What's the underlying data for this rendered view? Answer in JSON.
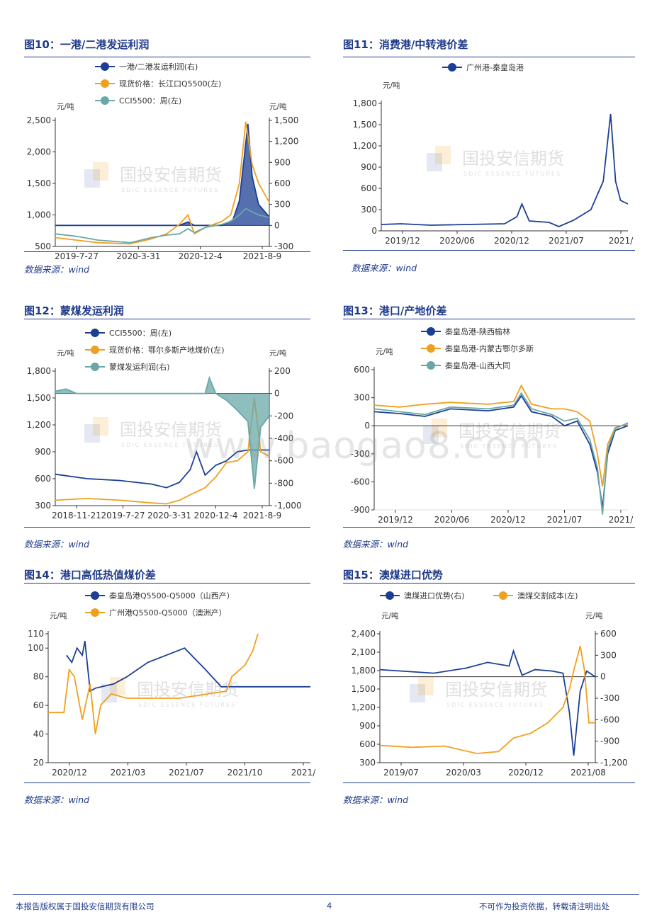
{
  "footer": {
    "left": "本报告版权属于国投安信期货有限公司",
    "page": "4",
    "right": "不可作为投资依据，转载请注明出处"
  },
  "watermark": {
    "brand": "国投安信期货",
    "brand_en": "SDIC ESSENCE FUTURES",
    "site": "www.baogao8.com"
  },
  "colors": {
    "navy": "#1c3f94",
    "orange": "#f0a020",
    "teal": "#6aa8a8",
    "title": "#1f3a8a"
  },
  "chart_data": [
    {
      "id": "fig10",
      "type": "line",
      "title": "图10：一港/二港发运利润",
      "source": "数据来源：wind",
      "unit_left": "元/吨",
      "unit_right": "元/吨",
      "x_ticks": [
        "2019-7-27",
        "2020-3-31",
        "2020-12-4",
        "2021-8-9"
      ],
      "y_left": {
        "ticks": [
          "2,500",
          "2,000",
          "1,500",
          "1,000",
          "500"
        ],
        "range": [
          500,
          2500
        ]
      },
      "y_right": {
        "ticks": [
          "1,500",
          "1,200",
          "900",
          "600",
          "300",
          "0",
          "-300"
        ],
        "range": [
          -300,
          1500
        ]
      },
      "series": [
        {
          "name": "一港/二港发运利润(右)",
          "axis": "right",
          "color": "#1c3f94",
          "style": "area",
          "x": [
            0,
            0.1,
            0.25,
            0.45,
            0.58,
            0.62,
            0.65,
            0.7,
            0.78,
            0.83,
            0.86,
            0.88,
            0.9,
            0.92,
            0.95,
            1.0
          ],
          "y": [
            0,
            0,
            0,
            0,
            0,
            50,
            0,
            0,
            0,
            80,
            350,
            900,
            1450,
            700,
            300,
            120
          ]
        },
        {
          "name": "现货价格：长江口Q5500(左)",
          "axis": "left",
          "color": "#f0a020",
          "style": "line",
          "x": [
            0,
            0.1,
            0.2,
            0.35,
            0.45,
            0.52,
            0.58,
            0.62,
            0.65,
            0.7,
            0.78,
            0.82,
            0.86,
            0.89,
            0.92,
            0.95,
            1.0
          ],
          "y": [
            640,
            600,
            560,
            540,
            620,
            700,
            850,
            1000,
            700,
            800,
            900,
            1000,
            1500,
            2480,
            1800,
            1500,
            1200
          ]
        },
        {
          "name": "CCI5500：周(左)",
          "axis": "left",
          "color": "#6aa8a8",
          "style": "line",
          "x": [
            0,
            0.1,
            0.2,
            0.35,
            0.45,
            0.52,
            0.58,
            0.62,
            0.65,
            0.7,
            0.78,
            0.82,
            0.86,
            0.89,
            0.92,
            0.95,
            1.0
          ],
          "y": [
            700,
            660,
            600,
            560,
            640,
            680,
            700,
            780,
            720,
            800,
            850,
            900,
            1000,
            1100,
            1050,
            1000,
            960
          ]
        }
      ]
    },
    {
      "id": "fig11",
      "type": "line",
      "title": "图11：消费港/中转港价差",
      "source": "数据来源：wind",
      "unit_left": "元/吨",
      "x_ticks": [
        "2019/12",
        "2020/06",
        "2020/12",
        "2021/07",
        "2021/"
      ],
      "y_left": {
        "ticks": [
          "1,800",
          "1,500",
          "1,200",
          "900",
          "600",
          "300",
          "0"
        ],
        "range": [
          0,
          1800
        ]
      },
      "series": [
        {
          "name": "广州港-秦皇岛港",
          "axis": "left",
          "color": "#1c3f94",
          "style": "line",
          "x": [
            0,
            0.08,
            0.2,
            0.35,
            0.5,
            0.55,
            0.57,
            0.6,
            0.68,
            0.72,
            0.78,
            0.85,
            0.9,
            0.93,
            0.95,
            0.97,
            1.0
          ],
          "y": [
            90,
            100,
            80,
            90,
            100,
            200,
            380,
            140,
            120,
            60,
            150,
            300,
            700,
            1650,
            700,
            430,
            380
          ]
        }
      ]
    },
    {
      "id": "fig12",
      "type": "line",
      "title": "图12：蒙煤发运利润",
      "source": "数据来源：wind",
      "unit_left": "元/吨",
      "unit_right": "元/吨",
      "x_ticks": [
        "2018-11-21",
        "2019-7-27",
        "2020-3-31",
        "2020-12-4",
        "2021-8-9"
      ],
      "y_left": {
        "ticks": [
          "1,800",
          "1,500",
          "1,200",
          "900",
          "600",
          "300"
        ],
        "range": [
          300,
          1800
        ]
      },
      "y_right": {
        "ticks": [
          "200",
          "0",
          "-200",
          "-400",
          "-600",
          "-800",
          "-1,000"
        ],
        "range": [
          -1000,
          200
        ]
      },
      "series": [
        {
          "name": "CCI5500：周(左)",
          "axis": "left",
          "color": "#1c3f94",
          "style": "line",
          "x": [
            0,
            0.15,
            0.3,
            0.45,
            0.52,
            0.58,
            0.63,
            0.66,
            0.7,
            0.75,
            0.8,
            0.85,
            0.9,
            0.95,
            1.0
          ],
          "y": [
            650,
            600,
            580,
            540,
            500,
            560,
            700,
            900,
            640,
            750,
            800,
            900,
            920,
            920,
            920
          ]
        },
        {
          "name": "现货价格：鄂尔多斯产地煤价(左)",
          "axis": "left",
          "color": "#f0a020",
          "style": "line",
          "x": [
            0,
            0.15,
            0.3,
            0.45,
            0.52,
            0.58,
            0.63,
            0.7,
            0.75,
            0.8,
            0.85,
            0.9,
            0.93,
            0.96,
            1.0
          ],
          "y": [
            360,
            380,
            360,
            330,
            320,
            360,
            420,
            500,
            620,
            780,
            800,
            900,
            1500,
            900,
            850
          ]
        },
        {
          "name": "蒙煤发运利润(右)",
          "axis": "right",
          "color": "#6aa8a8",
          "style": "area",
          "x": [
            0,
            0.05,
            0.1,
            0.3,
            0.6,
            0.7,
            0.72,
            0.75,
            0.8,
            0.85,
            0.9,
            0.93,
            0.96,
            1.0
          ],
          "y": [
            20,
            40,
            0,
            0,
            0,
            0,
            140,
            0,
            -60,
            -150,
            -250,
            -850,
            -300,
            -200
          ]
        }
      ]
    },
    {
      "id": "fig13",
      "type": "line",
      "title": "图13：港口/产地价差",
      "source": "数据来源：wind",
      "unit_left": "元/吨",
      "x_ticks": [
        "2019/12",
        "2020/06",
        "2020/12",
        "2021/07",
        "2021/"
      ],
      "y_left": {
        "ticks": [
          "600",
          "300",
          "0",
          "-300",
          "-600",
          "-900"
        ],
        "range": [
          -900,
          600
        ]
      },
      "series": [
        {
          "name": "秦皇岛港-陕西榆林",
          "axis": "left",
          "color": "#1c3f94",
          "style": "line",
          "x": [
            0,
            0.1,
            0.2,
            0.3,
            0.45,
            0.55,
            0.58,
            0.62,
            0.7,
            0.75,
            0.8,
            0.85,
            0.88,
            0.9,
            0.92,
            0.95,
            1.0
          ],
          "y": [
            150,
            130,
            100,
            180,
            160,
            200,
            320,
            150,
            100,
            0,
            50,
            -200,
            -500,
            -880,
            -300,
            -50,
            0
          ]
        },
        {
          "name": "秦皇岛港-内蒙古鄂尔多斯",
          "axis": "left",
          "color": "#f0a020",
          "style": "line",
          "x": [
            0,
            0.1,
            0.2,
            0.3,
            0.45,
            0.55,
            0.58,
            0.62,
            0.7,
            0.75,
            0.8,
            0.85,
            0.88,
            0.9,
            0.92,
            0.95,
            1.0
          ],
          "y": [
            220,
            200,
            230,
            250,
            230,
            260,
            430,
            230,
            180,
            180,
            150,
            50,
            -300,
            -650,
            -200,
            -20,
            20
          ]
        },
        {
          "name": "秦皇岛港-山西大同",
          "axis": "left",
          "color": "#6aa8a8",
          "style": "line",
          "x": [
            0,
            0.1,
            0.2,
            0.3,
            0.45,
            0.55,
            0.58,
            0.62,
            0.7,
            0.75,
            0.8,
            0.85,
            0.88,
            0.9,
            0.92,
            0.95,
            1.0
          ],
          "y": [
            180,
            150,
            120,
            200,
            180,
            220,
            350,
            180,
            120,
            50,
            80,
            -150,
            -450,
            -950,
            -250,
            -30,
            30
          ]
        }
      ]
    },
    {
      "id": "fig14",
      "type": "line",
      "title": "图14：港口高低热值煤价差",
      "source": "数据来源：wind",
      "unit_left": "元/吨",
      "x_ticks": [
        "2020/12",
        "2021/03",
        "2021/07",
        "2021/10",
        "2021/"
      ],
      "y_left": {
        "ticks": [
          "110",
          "100",
          "80",
          "60",
          "40",
          "20"
        ],
        "range": [
          20,
          110
        ]
      },
      "series": [
        {
          "name": "秦皇岛港Q5500-Q5000（山西产）",
          "axis": "left",
          "color": "#1c3f94",
          "style": "line",
          "x": [
            0.07,
            0.09,
            0.11,
            0.13,
            0.14,
            0.16,
            0.18,
            0.25,
            0.3,
            0.38,
            0.45,
            0.52,
            0.6,
            0.66,
            0.8,
            1.0
          ],
          "y": [
            95,
            90,
            100,
            95,
            105,
            70,
            72,
            75,
            80,
            90,
            95,
            100,
            85,
            73,
            73,
            73
          ]
        },
        {
          "name": "广州港Q5500-Q5000（澳洲产）",
          "axis": "left",
          "color": "#f0a020",
          "style": "line",
          "x": [
            0,
            0.06,
            0.08,
            0.1,
            0.13,
            0.16,
            0.18,
            0.2,
            0.24,
            0.3,
            0.5,
            0.68,
            0.7,
            0.75,
            0.78,
            0.8
          ],
          "y": [
            55,
            55,
            85,
            80,
            50,
            75,
            40,
            60,
            68,
            65,
            65,
            70,
            80,
            88,
            98,
            110
          ]
        }
      ]
    },
    {
      "id": "fig15",
      "type": "line",
      "title": "图15：澳煤进口优势",
      "source": "数据来源：wind",
      "unit_left": "元/吨",
      "unit_right": "元/吨",
      "x_ticks": [
        "2019/07",
        "2020/03",
        "2020/12",
        "2021/08"
      ],
      "y_left": {
        "ticks": [
          "2,400",
          "2,100",
          "1,800",
          "1,500",
          "1,200",
          "900",
          "600",
          "300"
        ],
        "range": [
          300,
          2400
        ]
      },
      "y_right": {
        "ticks": [
          "600",
          "300",
          "0",
          "-300",
          "-600",
          "-900",
          "-1,200"
        ],
        "range": [
          -1200,
          600
        ]
      },
      "series": [
        {
          "name": "澳煤进口优势(右)",
          "axis": "right",
          "color": "#1c3f94",
          "style": "line",
          "x": [
            0,
            0.1,
            0.25,
            0.4,
            0.5,
            0.6,
            0.62,
            0.66,
            0.72,
            0.8,
            0.85,
            0.88,
            0.9,
            0.93,
            0.96,
            1.0
          ],
          "y": [
            100,
            80,
            50,
            120,
            200,
            150,
            360,
            20,
            100,
            80,
            50,
            -500,
            -1100,
            -200,
            80,
            0
          ]
        },
        {
          "name": "澳煤交割成本(左)",
          "axis": "left",
          "color": "#f0a020",
          "style": "line",
          "x": [
            0,
            0.15,
            0.3,
            0.45,
            0.55,
            0.62,
            0.7,
            0.78,
            0.85,
            0.88,
            0.9,
            0.93,
            0.95,
            0.97,
            1.0
          ],
          "y": [
            580,
            550,
            570,
            450,
            480,
            700,
            780,
            950,
            1200,
            1500,
            1800,
            2200,
            1800,
            950,
            950
          ]
        }
      ]
    }
  ]
}
